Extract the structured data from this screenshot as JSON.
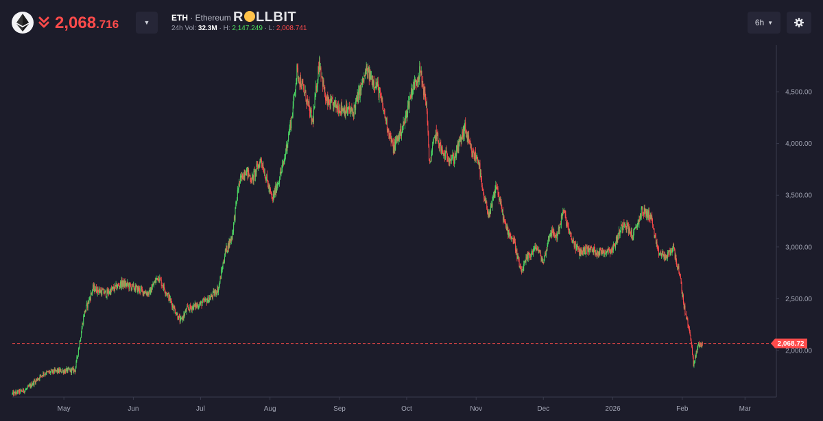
{
  "header": {
    "price_main": "2,068",
    "price_dec": ".716",
    "symbol": "ETH",
    "separator": " · ",
    "name": "Ethereum",
    "brand_r": "R",
    "brand_rest": "LLBIT",
    "vol_label": "24h Vol: ",
    "vol_value": "32.3M",
    "high_label": " · H: ",
    "high_value": "2,147.249",
    "low_label": " · L: ",
    "low_value": "2,008.741",
    "timeframe": "6h"
  },
  "colors": {
    "background": "#1c1c2a",
    "up": "#4cd964",
    "down": "#ff4b4b",
    "axis": "#3a3c4e"
  },
  "chart_data": {
    "type": "candlestick",
    "current_price": 2068.72,
    "current_price_label": "2,068.72",
    "ylim": [
      1550,
      4950
    ],
    "y_ticks": [
      {
        "value": 2000,
        "label": "2,000.00"
      },
      {
        "value": 2500,
        "label": "2,500.00"
      },
      {
        "value": 3000,
        "label": "3,000.00"
      },
      {
        "value": 3500,
        "label": "3,500.00"
      },
      {
        "value": 4000,
        "label": "4,000.00"
      },
      {
        "value": 4500,
        "label": "4,500.00"
      }
    ],
    "x_range": [
      "2025-04-08",
      "2026-03-15"
    ],
    "x_ticks": [
      {
        "date": "2025-05-01",
        "label": "May"
      },
      {
        "date": "2025-06-01",
        "label": "Jun"
      },
      {
        "date": "2025-07-01",
        "label": "Jul"
      },
      {
        "date": "2025-08-01",
        "label": "Aug"
      },
      {
        "date": "2025-09-01",
        "label": "Sep"
      },
      {
        "date": "2025-10-01",
        "label": "Oct"
      },
      {
        "date": "2025-11-01",
        "label": "Nov"
      },
      {
        "date": "2025-12-01",
        "label": "Dec"
      },
      {
        "date": "2026-01-01",
        "label": "2026"
      },
      {
        "date": "2026-02-01",
        "label": "Feb"
      },
      {
        "date": "2026-03-01",
        "label": "Mar"
      }
    ],
    "close_path": [
      [
        "2025-04-08",
        1580
      ],
      [
        "2025-04-14",
        1620
      ],
      [
        "2025-04-22",
        1780
      ],
      [
        "2025-04-28",
        1800
      ],
      [
        "2025-05-06",
        1810
      ],
      [
        "2025-05-10",
        2350
      ],
      [
        "2025-05-14",
        2600
      ],
      [
        "2025-05-20",
        2550
      ],
      [
        "2025-05-27",
        2650
      ],
      [
        "2025-06-02",
        2600
      ],
      [
        "2025-06-08",
        2550
      ],
      [
        "2025-06-12",
        2720
      ],
      [
        "2025-06-16",
        2550
      ],
      [
        "2025-06-22",
        2280
      ],
      [
        "2025-06-25",
        2400
      ],
      [
        "2025-07-01",
        2450
      ],
      [
        "2025-07-05",
        2500
      ],
      [
        "2025-07-09",
        2600
      ],
      [
        "2025-07-12",
        2950
      ],
      [
        "2025-07-15",
        3100
      ],
      [
        "2025-07-18",
        3600
      ],
      [
        "2025-07-21",
        3750
      ],
      [
        "2025-07-24",
        3650
      ],
      [
        "2025-07-28",
        3850
      ],
      [
        "2025-08-02",
        3450
      ],
      [
        "2025-08-07",
        3800
      ],
      [
        "2025-08-11",
        4300
      ],
      [
        "2025-08-13",
        4700
      ],
      [
        "2025-08-17",
        4450
      ],
      [
        "2025-08-20",
        4200
      ],
      [
        "2025-08-23",
        4800
      ],
      [
        "2025-08-26",
        4400
      ],
      [
        "2025-09-01",
        4350
      ],
      [
        "2025-09-07",
        4300
      ],
      [
        "2025-09-13",
        4700
      ],
      [
        "2025-09-18",
        4550
      ],
      [
        "2025-09-22",
        4200
      ],
      [
        "2025-09-25",
        3950
      ],
      [
        "2025-09-30",
        4200
      ],
      [
        "2025-10-03",
        4500
      ],
      [
        "2025-10-07",
        4700
      ],
      [
        "2025-10-10",
        4350
      ],
      [
        "2025-10-11",
        3800
      ],
      [
        "2025-10-14",
        4100
      ],
      [
        "2025-10-17",
        3900
      ],
      [
        "2025-10-22",
        3850
      ],
      [
        "2025-10-27",
        4150
      ],
      [
        "2025-10-30",
        3900
      ],
      [
        "2025-11-02",
        3850
      ],
      [
        "2025-11-04",
        3500
      ],
      [
        "2025-11-07",
        3300
      ],
      [
        "2025-11-10",
        3600
      ],
      [
        "2025-11-14",
        3200
      ],
      [
        "2025-11-18",
        3050
      ],
      [
        "2025-11-21",
        2750
      ],
      [
        "2025-11-24",
        2900
      ],
      [
        "2025-11-28",
        3000
      ],
      [
        "2025-12-01",
        2850
      ],
      [
        "2025-12-04",
        3150
      ],
      [
        "2025-12-07",
        3100
      ],
      [
        "2025-12-10",
        3350
      ],
      [
        "2025-12-13",
        3100
      ],
      [
        "2025-12-17",
        2950
      ],
      [
        "2025-12-21",
        2980
      ],
      [
        "2025-12-26",
        2950
      ],
      [
        "2026-01-01",
        2980
      ],
      [
        "2026-01-06",
        3250
      ],
      [
        "2026-01-10",
        3100
      ],
      [
        "2026-01-14",
        3350
      ],
      [
        "2026-01-18",
        3300
      ],
      [
        "2026-01-21",
        2950
      ],
      [
        "2026-01-25",
        2900
      ],
      [
        "2026-01-28",
        3000
      ],
      [
        "2026-01-31",
        2700
      ],
      [
        "2026-02-02",
        2400
      ],
      [
        "2026-02-05",
        2100
      ],
      [
        "2026-02-06",
        1850
      ],
      [
        "2026-02-08",
        2050
      ],
      [
        "2026-02-10",
        2068
      ]
    ]
  }
}
